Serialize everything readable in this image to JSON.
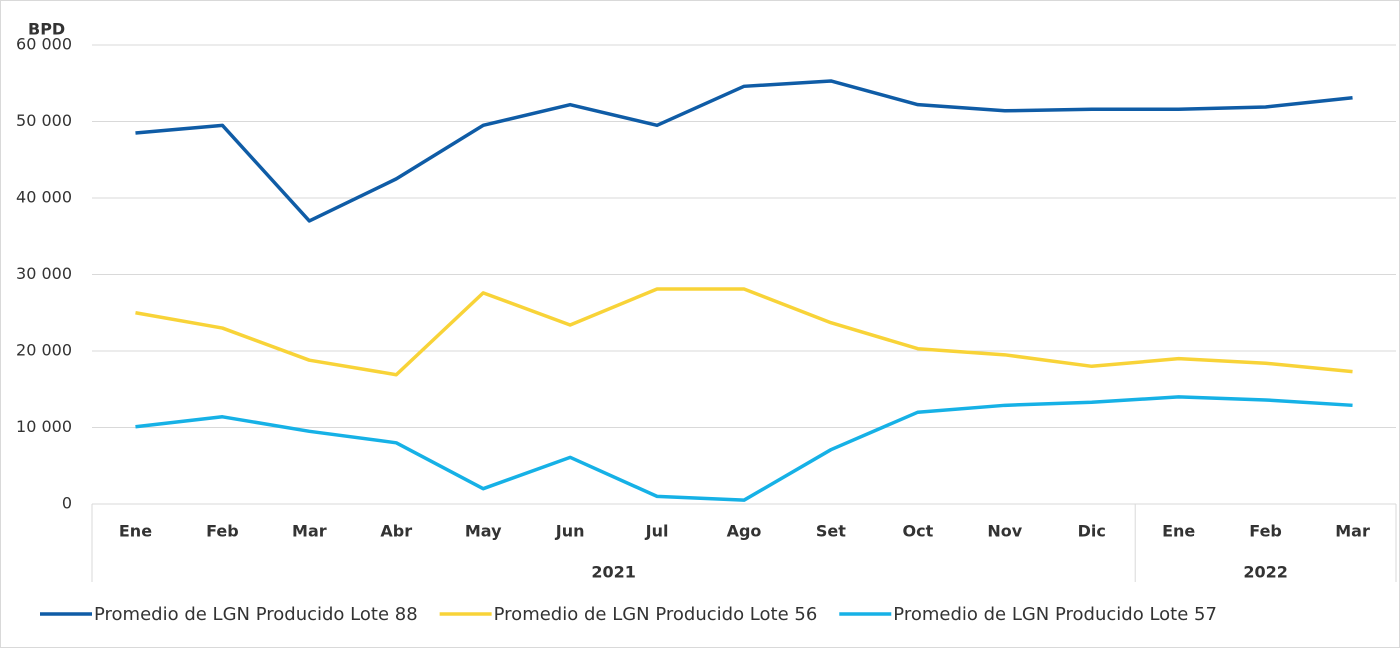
{
  "chart_data": {
    "type": "line",
    "y_label": "BPD",
    "categories": [
      "Ene",
      "Feb",
      "Mar",
      "Abr",
      "May",
      "Jun",
      "Jul",
      "Ago",
      "Set",
      "Oct",
      "Nov",
      "Dic",
      "Ene",
      "Feb",
      "Mar"
    ],
    "category_years": [
      "2021",
      "2021",
      "2021",
      "2021",
      "2021",
      "2021",
      "2021",
      "2021",
      "2021",
      "2021",
      "2021",
      "2021",
      "2022",
      "2022",
      "2022"
    ],
    "series": [
      {
        "name": "Promedio de LGN Producido Lote 88",
        "color": "#0f5ca6",
        "values": [
          48500,
          49500,
          37000,
          42500,
          49500,
          52200,
          49500,
          54600,
          55300,
          52200,
          51400,
          51600,
          51600,
          51900,
          53100
        ]
      },
      {
        "name": "Promedio de LGN Producido Lote 56",
        "color": "#f8d338",
        "values": [
          25000,
          23000,
          18800,
          16900,
          27600,
          23400,
          28100,
          28100,
          23700,
          20300,
          19500,
          18000,
          19000,
          18400,
          17300
        ]
      },
      {
        "name": "Promedio de LGN Producido Lote 57",
        "color": "#16b1e6",
        "values": [
          10100,
          11400,
          9500,
          8000,
          2000,
          6100,
          1000,
          500,
          7100,
          12000,
          12900,
          13300,
          14000,
          13600,
          12900
        ]
      }
    ],
    "ylim": [
      0,
      60000
    ],
    "yticks": [
      0,
      {
        "value": 10000,
        "label": "10 000"
      },
      {
        "value": 20000,
        "label": "20 000"
      },
      {
        "value": 30000,
        "label": "30 000"
      },
      {
        "value": 40000,
        "label": "40 000"
      },
      {
        "value": 50000,
        "label": "50 000"
      },
      {
        "value": 60000,
        "label": "60 000"
      }
    ],
    "grid": true,
    "legend": "bottom"
  }
}
